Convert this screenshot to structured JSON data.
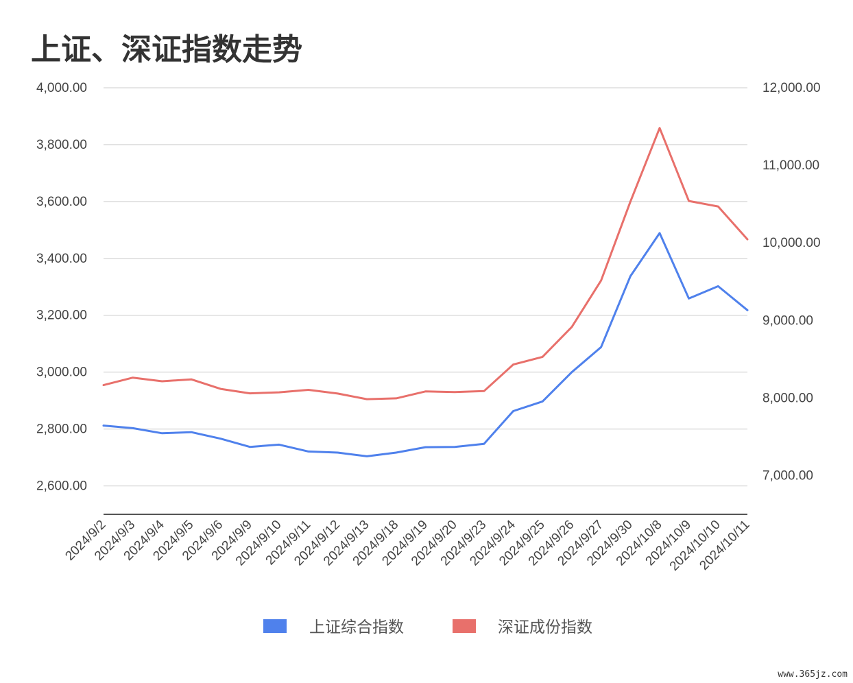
{
  "colors": {
    "shanghai": "#4f81ec",
    "shenzhen": "#e8706b",
    "grid": "#dddddd",
    "axis": "#555555",
    "text": "#444444"
  },
  "chart_data": {
    "type": "line",
    "title": "上证、深证指数走势",
    "categories": [
      "2024/9/2",
      "2024/9/3",
      "2024/9/4",
      "2024/9/5",
      "2024/9/6",
      "2024/9/9",
      "2024/9/10",
      "2024/9/11",
      "2024/9/12",
      "2024/9/13",
      "2024/9/18",
      "2024/9/19",
      "2024/9/20",
      "2024/9/23",
      "2024/9/24",
      "2024/9/25",
      "2024/9/26",
      "2024/9/27",
      "2024/9/30",
      "2024/10/8",
      "2024/10/9",
      "2024/10/10",
      "2024/10/11"
    ],
    "left_axis": {
      "ticks": [
        2600,
        2800,
        3000,
        3200,
        3400,
        3600,
        3800,
        4000
      ],
      "tick_labels": [
        "2,600.00",
        "2,800.00",
        "3,000.00",
        "3,200.00",
        "3,400.00",
        "3,600.00",
        "3,800.00",
        "4,000.00"
      ],
      "ylim": [
        2500,
        4000
      ]
    },
    "right_axis": {
      "ticks": [
        7000,
        8000,
        9000,
        10000,
        11000,
        12000
      ],
      "tick_labels": [
        "7,000.00",
        "8,000.00",
        "9,000.00",
        "10,000.00",
        "11,000.00",
        "12,000.00"
      ],
      "ylim": [
        6500,
        12000
      ]
    },
    "series": [
      {
        "name": "上证综合指数",
        "axis": "left",
        "color": "#4f81ec",
        "values": [
          2812,
          2803,
          2785,
          2789,
          2766,
          2737,
          2745,
          2721,
          2717,
          2704,
          2717,
          2736,
          2737,
          2748,
          2863,
          2897,
          3000,
          3088,
          3337,
          3489,
          3259,
          3302,
          3218
        ]
      },
      {
        "name": "深证成份指数",
        "axis": "right",
        "color": "#e8706b",
        "values": [
          8166,
          8262,
          8215,
          8240,
          8117,
          8060,
          8073,
          8105,
          8057,
          7985,
          7995,
          8085,
          8077,
          8089,
          8431,
          8530,
          8916,
          9514,
          10530,
          11481,
          10540,
          10469,
          10046
        ]
      }
    ],
    "grid": true,
    "legend": "bottom-center"
  },
  "legend": {
    "items": [
      {
        "label": "上证综合指数"
      },
      {
        "label": "深证成份指数"
      }
    ]
  },
  "watermark": "www.365jz.com"
}
